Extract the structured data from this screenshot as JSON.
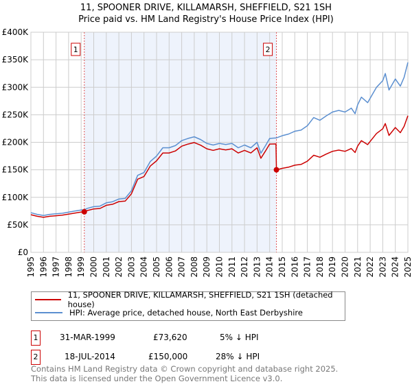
{
  "title_line1": "11, SPOONER DRIVE, KILLAMARSH, SHEFFIELD, S21 1SH",
  "title_line2": "Price paid vs. HM Land Registry's House Price Index (HPI)",
  "colors": {
    "property": "#cc0000",
    "hpi": "#5b8fd0",
    "shade": "#eef3fc",
    "grid": "#cccccc"
  },
  "chart_data": {
    "type": "line",
    "title": "11, SPOONER DRIVE, KILLAMARSH, SHEFFIELD, S21 1SH - Price paid vs. HM Land Registry's House Price Index (HPI)",
    "xlabel": "",
    "ylabel": "",
    "xlim": [
      1995,
      2025
    ],
    "ylim": [
      0,
      400000
    ],
    "grid": true,
    "legend_placement": "below",
    "y_ticks": [
      0,
      50000,
      100000,
      150000,
      200000,
      250000,
      300000,
      350000,
      400000
    ],
    "y_tick_labels": [
      "£0",
      "£50K",
      "£100K",
      "£150K",
      "£200K",
      "£250K",
      "£300K",
      "£350K",
      "£400K"
    ],
    "x_ticks": [
      "1995",
      "1996",
      "1997",
      "1998",
      "1999",
      "2000",
      "2001",
      "2002",
      "2003",
      "2004",
      "2005",
      "2006",
      "2007",
      "2008",
      "2009",
      "2010",
      "2011",
      "2012",
      "2013",
      "2014",
      "2015",
      "2016",
      "2017",
      "2018",
      "2019",
      "2020",
      "2021",
      "2022",
      "2023",
      "2024",
      "2025"
    ],
    "shaded_range": [
      1999.25,
      2014.54
    ],
    "series": [
      {
        "name": "11, SPOONER DRIVE, KILLAMARSH, SHEFFIELD, S21 1SH (detached house)",
        "color": "#cc0000",
        "points": [
          [
            1995,
            68400
          ],
          [
            1995.5,
            65600
          ],
          [
            1996,
            63700
          ],
          [
            1996.5,
            65600
          ],
          [
            1997,
            66500
          ],
          [
            1997.5,
            67500
          ],
          [
            1998,
            69400
          ],
          [
            1998.5,
            71300
          ],
          [
            1999,
            73200
          ],
          [
            1999.25,
            73620
          ],
          [
            1999.5,
            76000
          ],
          [
            2000,
            78900
          ],
          [
            2000.5,
            79800
          ],
          [
            2001,
            85500
          ],
          [
            2001.5,
            87400
          ],
          [
            2002,
            92200
          ],
          [
            2002.5,
            93100
          ],
          [
            2003,
            106400
          ],
          [
            2003.5,
            133000
          ],
          [
            2004,
            137800
          ],
          [
            2004.5,
            156800
          ],
          [
            2005,
            166300
          ],
          [
            2005.5,
            180500
          ],
          [
            2006,
            180500
          ],
          [
            2006.5,
            184300
          ],
          [
            2007,
            192900
          ],
          [
            2007.5,
            196700
          ],
          [
            2008,
            199500
          ],
          [
            2008.5,
            194800
          ],
          [
            2009,
            188100
          ],
          [
            2009.5,
            185300
          ],
          [
            2010,
            188100
          ],
          [
            2010.5,
            186200
          ],
          [
            2011,
            188100
          ],
          [
            2011.5,
            180500
          ],
          [
            2012,
            185300
          ],
          [
            2012.5,
            180500
          ],
          [
            2013,
            190000
          ],
          [
            2013.3,
            171000
          ],
          [
            2013.7,
            185300
          ],
          [
            2014,
            196700
          ],
          [
            2014.5,
            197000
          ],
          [
            2014.54,
            150000
          ],
          [
            2015,
            152600
          ],
          [
            2015.5,
            154800
          ],
          [
            2016,
            158400
          ],
          [
            2016.5,
            159800
          ],
          [
            2017,
            165600
          ],
          [
            2017.5,
            176400
          ],
          [
            2018,
            172800
          ],
          [
            2018.5,
            178600
          ],
          [
            2019,
            183600
          ],
          [
            2019.5,
            185800
          ],
          [
            2020,
            183600
          ],
          [
            2020.5,
            188600
          ],
          [
            2020.8,
            181400
          ],
          [
            2021,
            193000
          ],
          [
            2021.3,
            203000
          ],
          [
            2021.8,
            195800
          ],
          [
            2022,
            201600
          ],
          [
            2022.5,
            216000
          ],
          [
            2023,
            224600
          ],
          [
            2023.2,
            234000
          ],
          [
            2023.5,
            212400
          ],
          [
            2024,
            226800
          ],
          [
            2024.4,
            217400
          ],
          [
            2024.7,
            229000
          ],
          [
            2025,
            248400
          ]
        ]
      },
      {
        "name": "HPI: Average price, detached house, North East Derbyshire",
        "color": "#5b8fd0",
        "points": [
          [
            1995,
            72000
          ],
          [
            1995.5,
            69000
          ],
          [
            1996,
            67000
          ],
          [
            1996.5,
            69000
          ],
          [
            1997,
            70000
          ],
          [
            1997.5,
            71000
          ],
          [
            1998,
            73000
          ],
          [
            1998.5,
            75000
          ],
          [
            1999,
            77000
          ],
          [
            1999.25,
            77500
          ],
          [
            1999.5,
            80000
          ],
          [
            2000,
            83000
          ],
          [
            2000.5,
            84000
          ],
          [
            2001,
            90000
          ],
          [
            2001.5,
            92000
          ],
          [
            2002,
            97000
          ],
          [
            2002.5,
            98000
          ],
          [
            2003,
            112000
          ],
          [
            2003.5,
            140000
          ],
          [
            2004,
            145000
          ],
          [
            2004.5,
            165000
          ],
          [
            2005,
            175000
          ],
          [
            2005.5,
            190000
          ],
          [
            2006,
            190000
          ],
          [
            2006.5,
            194000
          ],
          [
            2007,
            203000
          ],
          [
            2007.5,
            207000
          ],
          [
            2008,
            210000
          ],
          [
            2008.5,
            205000
          ],
          [
            2009,
            198000
          ],
          [
            2009.5,
            195000
          ],
          [
            2010,
            198000
          ],
          [
            2010.5,
            196000
          ],
          [
            2011,
            198000
          ],
          [
            2011.5,
            190000
          ],
          [
            2012,
            195000
          ],
          [
            2012.5,
            190000
          ],
          [
            2013,
            200000
          ],
          [
            2013.3,
            180000
          ],
          [
            2013.7,
            195000
          ],
          [
            2014,
            207000
          ],
          [
            2014.54,
            208000
          ],
          [
            2015,
            212000
          ],
          [
            2015.5,
            215000
          ],
          [
            2016,
            220000
          ],
          [
            2016.5,
            222000
          ],
          [
            2017,
            230000
          ],
          [
            2017.5,
            245000
          ],
          [
            2018,
            240000
          ],
          [
            2018.5,
            248000
          ],
          [
            2019,
            255000
          ],
          [
            2019.5,
            258000
          ],
          [
            2020,
            255000
          ],
          [
            2020.5,
            262000
          ],
          [
            2020.8,
            252000
          ],
          [
            2021,
            268000
          ],
          [
            2021.3,
            282000
          ],
          [
            2021.8,
            272000
          ],
          [
            2022,
            280000
          ],
          [
            2022.5,
            300000
          ],
          [
            2023,
            312000
          ],
          [
            2023.2,
            325000
          ],
          [
            2023.5,
            295000
          ],
          [
            2024,
            315000
          ],
          [
            2024.4,
            302000
          ],
          [
            2024.7,
            318000
          ],
          [
            2025,
            345000
          ]
        ]
      }
    ],
    "annotations": [
      {
        "label": "1",
        "x": 1999.25,
        "y": 73620
      },
      {
        "label": "2",
        "x": 2014.54,
        "y": 150000
      }
    ]
  },
  "legend": {
    "property": "11, SPOONER DRIVE, KILLAMARSH, SHEFFIELD, S21 1SH (detached house)",
    "hpi": "HPI: Average price, detached house, North East Derbyshire"
  },
  "sales": [
    {
      "num": "1",
      "date": "31-MAR-1999",
      "price": "£73,620",
      "hpi": "5% ↓ HPI"
    },
    {
      "num": "2",
      "date": "18-JUL-2014",
      "price": "£150,000",
      "hpi": "28% ↓ HPI"
    }
  ],
  "footer_line1": "Contains HM Land Registry data © Crown copyright and database right 2025.",
  "footer_line2": "This data is licensed under the Open Government Licence v3.0."
}
